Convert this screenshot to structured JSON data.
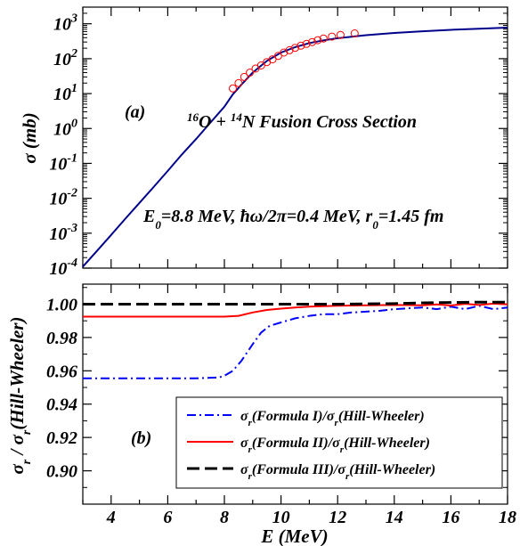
{
  "chart_data": [
    {
      "panel": "a",
      "type": "line",
      "x_scale": "linear",
      "y_scale": "log",
      "xlim": [
        3,
        18
      ],
      "ylim": [
        0.0001,
        3000
      ],
      "ylabel": "σ (mb)",
      "x_ticks": [
        4,
        6,
        8,
        10,
        12,
        14,
        16,
        18
      ],
      "y_ticks": [
        {
          "value": 0.0001,
          "base": "10",
          "exp": "-4"
        },
        {
          "value": 0.001,
          "base": "10",
          "exp": "-3"
        },
        {
          "value": 0.01,
          "base": "10",
          "exp": "-2"
        },
        {
          "value": 0.1,
          "base": "10",
          "exp": "-1"
        },
        {
          "value": 1,
          "base": "10",
          "exp": "0"
        },
        {
          "value": 10,
          "base": "10",
          "exp": "1"
        },
        {
          "value": 100,
          "base": "10",
          "exp": "2"
        },
        {
          "value": 1000,
          "base": "10",
          "exp": "3"
        }
      ],
      "panel_label": "(a)",
      "title_parts": {
        "m1": "16",
        "e1": "O + ",
        "m2": "14",
        "e2": "N Fusion Cross Section"
      },
      "params_parts": {
        "a": "E",
        "a_sub": "0",
        "b": "=8.8 MeV, ħω/2π=0.4 MeV, r",
        "b_sub": "0",
        "c": "=1.45 fm"
      },
      "series": [
        {
          "color": "#00008b",
          "x": [
            3.0,
            3.5,
            4.0,
            4.5,
            5.0,
            5.5,
            6.0,
            6.5,
            7.0,
            7.5,
            8.0,
            8.3,
            8.6,
            9.0,
            9.5,
            10.0,
            10.5,
            11.0,
            11.5,
            12.0,
            13.0,
            14.0,
            15.0,
            16.0,
            17.0,
            18.0
          ],
          "y": [
            0.00011,
            0.00031,
            0.00089,
            0.0026,
            0.0074,
            0.021,
            0.061,
            0.18,
            0.5,
            1.45,
            4.2,
            9.5,
            18,
            40,
            86,
            150,
            215,
            280,
            335,
            385,
            470,
            545,
            610,
            670,
            725,
            775
          ]
        },
        {
          "type": "scatter",
          "marker": "open-circle",
          "color": "#ff0000",
          "x": [
            8.3,
            8.5,
            8.7,
            8.9,
            9.1,
            9.3,
            9.5,
            9.7,
            9.9,
            10.1,
            10.3,
            10.5,
            10.7,
            10.9,
            11.1,
            11.3,
            11.5,
            11.8,
            12.1,
            12.6
          ],
          "y": [
            14,
            20,
            30,
            40,
            52,
            64,
            80,
            96,
            120,
            150,
            175,
            205,
            235,
            265,
            300,
            340,
            380,
            430,
            480,
            530
          ]
        }
      ]
    },
    {
      "panel": "b",
      "type": "line",
      "xlim": [
        3,
        18
      ],
      "ylim": [
        0.88,
        1.012
      ],
      "xlabel": "E (MeV)",
      "ylabel_parts": {
        "a": "σ",
        "a_sub": "r",
        "b": " / σ",
        "b_sub": "r",
        "c": "(Hill-Wheeler)"
      },
      "x_ticks": [
        4,
        6,
        8,
        10,
        12,
        14,
        16,
        18
      ],
      "y_ticks": [
        "0.90",
        "0.92",
        "0.94",
        "0.96",
        "0.98",
        "1.00"
      ],
      "panel_label": "(b)",
      "legend_position": "lower-right",
      "series": [
        {
          "legend": {
            "a": "σ",
            "a_sub": "r",
            "b": "(Formula I)/σ",
            "b_sub": "r",
            "c": "(Hill-Wheeler)"
          },
          "color": "#0000ff",
          "dash": "dash-dot",
          "x": [
            3.0,
            5.0,
            7.0,
            7.8,
            8.0,
            8.3,
            8.6,
            9.0,
            9.3,
            9.6,
            10.0,
            10.5,
            11.0,
            11.5,
            12.0,
            12.5,
            13.0,
            13.5,
            14.0,
            14.5,
            15.0,
            15.5,
            16.0,
            16.5,
            17.0,
            17.5,
            18.0
          ],
          "y": [
            0.9555,
            0.9555,
            0.9555,
            0.956,
            0.957,
            0.96,
            0.966,
            0.976,
            0.983,
            0.987,
            0.989,
            0.9915,
            0.993,
            0.994,
            0.994,
            0.995,
            0.9955,
            0.996,
            0.997,
            0.9975,
            0.998,
            0.997,
            0.9985,
            0.997,
            0.999,
            0.997,
            0.998
          ]
        },
        {
          "legend": {
            "a": "σ",
            "a_sub": "r",
            "b": "(Formula II)/σ",
            "b_sub": "r",
            "c": "(Hill-Wheeler)"
          },
          "color": "#ff0000",
          "dash": "solid",
          "x": [
            3.0,
            5.0,
            7.0,
            8.0,
            8.5,
            9.0,
            9.5,
            10.0,
            10.5,
            11.0,
            12.0,
            13.0,
            14.0,
            15.0,
            15.5,
            16.0,
            16.5,
            17.0,
            17.5,
            18.0
          ],
          "y": [
            0.9925,
            0.9925,
            0.9925,
            0.9925,
            0.993,
            0.995,
            0.9965,
            0.9973,
            0.998,
            0.9985,
            0.999,
            0.9993,
            0.9995,
            0.9993,
            0.9998,
            0.9992,
            1.0002,
            0.9995,
            1.0003,
            0.9998
          ]
        },
        {
          "legend": {
            "a": "σ",
            "a_sub": "r",
            "b": "(Formula III)/σ",
            "b_sub": "r",
            "c": "(Hill-Wheeler)"
          },
          "color": "#000000",
          "dash": "dashed",
          "x": [
            3.0,
            6.0,
            9.0,
            12.0,
            14.0,
            15.0,
            16.0,
            17.0,
            18.0
          ],
          "y": [
            1.0,
            1.0,
            1.0,
            1.0,
            1.0003,
            1.0008,
            1.001,
            1.0012,
            1.0012
          ]
        }
      ]
    }
  ]
}
